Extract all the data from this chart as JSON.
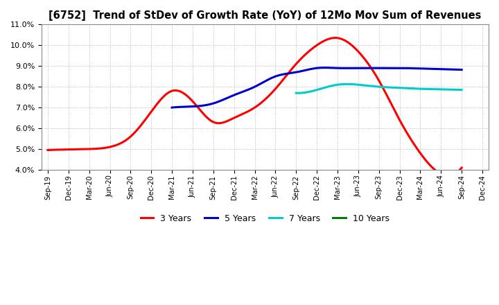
{
  "title": "[6752]  Trend of StDev of Growth Rate (YoY) of 12Mo Mov Sum of Revenues",
  "ylim": [
    0.04,
    0.11
  ],
  "yticks": [
    0.04,
    0.05,
    0.06,
    0.07,
    0.08,
    0.09,
    0.1,
    0.11
  ],
  "plot_bg_color": "#ffffff",
  "fig_bg_color": "#ffffff",
  "grid_color": "#aaaaaa",
  "grid_style": ":",
  "series": {
    "3 Years": {
      "color": "#ff0000",
      "xs": [
        0,
        1,
        2,
        3,
        4,
        5,
        6,
        7,
        8,
        9,
        10,
        11,
        12,
        13,
        14,
        15,
        16,
        17,
        18,
        19,
        20,
        21
      ],
      "ys": [
        0.0495,
        0.0498,
        0.05,
        0.051,
        0.056,
        0.068,
        0.078,
        0.073,
        0.063,
        0.065,
        0.07,
        0.079,
        0.091,
        0.1,
        0.1035,
        0.097,
        0.083,
        0.064,
        0.048,
        0.038,
        0.041,
        null
      ]
    },
    "5 Years": {
      "color": "#0000cc",
      "xs": [
        6,
        7,
        8,
        9,
        10,
        11,
        12,
        13,
        14,
        15,
        16,
        17,
        18,
        19,
        20,
        21
      ],
      "ys": [
        0.07,
        0.0705,
        0.072,
        0.076,
        0.08,
        0.085,
        0.087,
        0.089,
        0.089,
        0.089,
        0.089,
        0.089,
        0.0888,
        0.0885,
        0.0882,
        null
      ]
    },
    "7 Years": {
      "color": "#00cccc",
      "xs": [
        12,
        13,
        14,
        15,
        16,
        17,
        18,
        19,
        20,
        21
      ],
      "ys": [
        0.077,
        0.0785,
        0.081,
        0.081,
        0.08,
        0.0795,
        0.079,
        0.0788,
        0.0785,
        null
      ]
    },
    "10 Years": {
      "color": "#008000",
      "xs": [],
      "ys": []
    }
  },
  "x_tick_labels": [
    "Sep-19",
    "Dec-19",
    "Mar-20",
    "Jun-20",
    "Sep-20",
    "Dec-20",
    "Mar-21",
    "Jun-21",
    "Sep-21",
    "Dec-21",
    "Mar-22",
    "Jun-22",
    "Sep-22",
    "Dec-22",
    "Mar-23",
    "Jun-23",
    "Sep-23",
    "Dec-23",
    "Mar-24",
    "Jun-24",
    "Sep-24",
    "Dec-24"
  ],
  "legend_labels": [
    "3 Years",
    "5 Years",
    "7 Years",
    "10 Years"
  ],
  "legend_colors": [
    "#ff0000",
    "#0000cc",
    "#00cccc",
    "#008000"
  ]
}
